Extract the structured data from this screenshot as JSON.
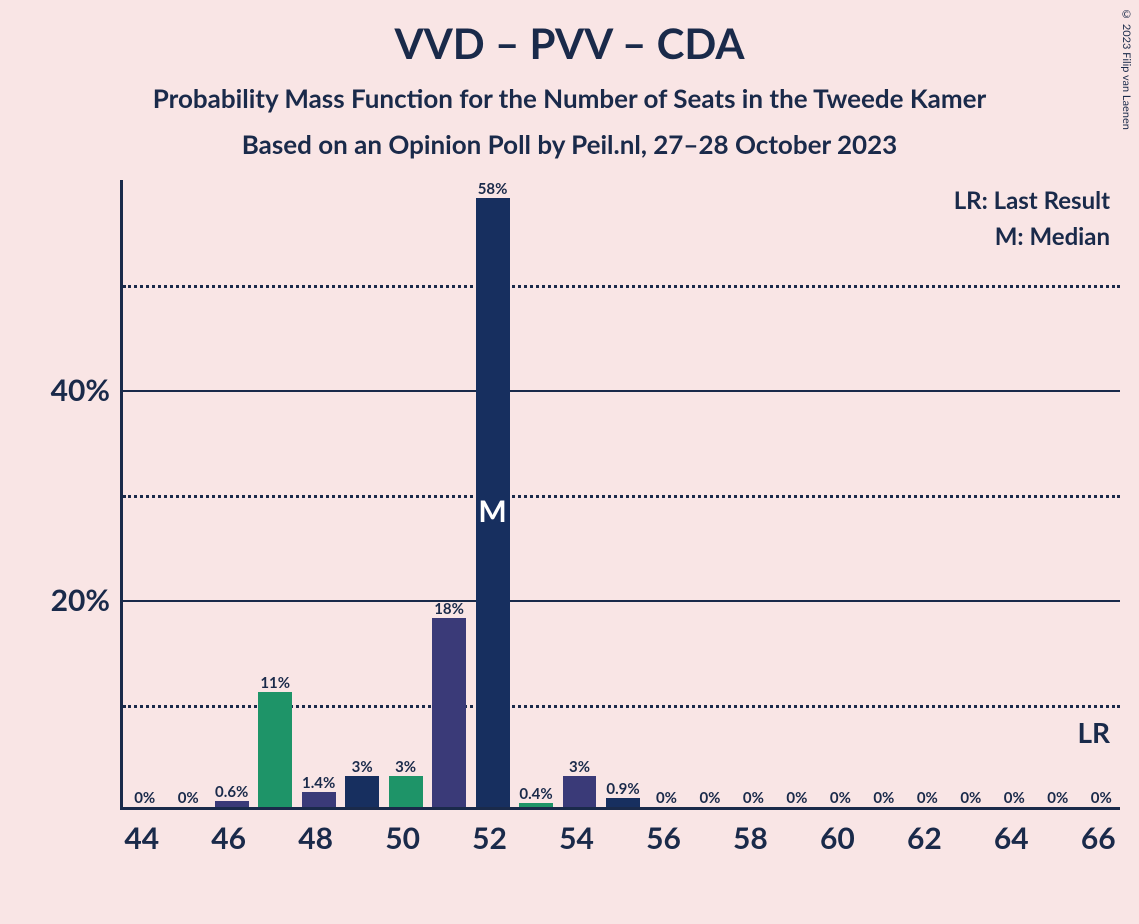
{
  "title": "VVD – PVV – CDA",
  "subtitle1": "Probability Mass Function for the Number of Seats in the Tweede Kamer",
  "subtitle2": "Based on an Opinion Poll by Peil.nl, 27–28 October 2023",
  "copyright": "© 2023 Filip van Laenen",
  "legend": {
    "lr": "LR: Last Result",
    "m": "M: Median",
    "lr_short": "LR",
    "m_short": "M"
  },
  "chart": {
    "type": "bar",
    "background_color": "#f9e5e5",
    "axis_color": "#1a2a4a",
    "text_color": "#1a2a4a",
    "ymax": 60,
    "ylim": [
      0,
      60
    ],
    "yticks_major": [
      20,
      40
    ],
    "yticks_minor": [
      10,
      30,
      50
    ],
    "ytick_labels": {
      "20": "20%",
      "40": "40%"
    },
    "xmin": 44,
    "xmax": 66,
    "xticks": [
      44,
      46,
      48,
      50,
      52,
      54,
      56,
      58,
      60,
      62,
      64,
      66
    ],
    "bar_width_ratio": 0.78,
    "colors": {
      "navy": "#172f5f",
      "purple": "#3a3a78",
      "green": "#1e9468"
    },
    "median_x": 52,
    "lr_x": 66,
    "bars": [
      {
        "x": 44,
        "value": 0,
        "label": "0%",
        "color": "navy"
      },
      {
        "x": 45,
        "value": 0,
        "label": "0%",
        "color": "navy"
      },
      {
        "x": 46,
        "value": 0.6,
        "label": "0.6%",
        "color": "purple"
      },
      {
        "x": 47,
        "value": 11,
        "label": "11%",
        "color": "green"
      },
      {
        "x": 48,
        "value": 1.4,
        "label": "1.4%",
        "color": "purple"
      },
      {
        "x": 49,
        "value": 3,
        "label": "3%",
        "color": "navy"
      },
      {
        "x": 50,
        "value": 3,
        "label": "3%",
        "color": "green"
      },
      {
        "x": 51,
        "value": 18,
        "label": "18%",
        "color": "purple"
      },
      {
        "x": 52,
        "value": 58,
        "label": "58%",
        "color": "navy"
      },
      {
        "x": 53,
        "value": 0.4,
        "label": "0.4%",
        "color": "green"
      },
      {
        "x": 54,
        "value": 3,
        "label": "3%",
        "color": "purple"
      },
      {
        "x": 55,
        "value": 0.9,
        "label": "0.9%",
        "color": "navy"
      },
      {
        "x": 56,
        "value": 0,
        "label": "0%",
        "color": "navy"
      },
      {
        "x": 57,
        "value": 0,
        "label": "0%",
        "color": "navy"
      },
      {
        "x": 58,
        "value": 0,
        "label": "0%",
        "color": "navy"
      },
      {
        "x": 59,
        "value": 0,
        "label": "0%",
        "color": "navy"
      },
      {
        "x": 60,
        "value": 0,
        "label": "0%",
        "color": "navy"
      },
      {
        "x": 61,
        "value": 0,
        "label": "0%",
        "color": "navy"
      },
      {
        "x": 62,
        "value": 0,
        "label": "0%",
        "color": "navy"
      },
      {
        "x": 63,
        "value": 0,
        "label": "0%",
        "color": "navy"
      },
      {
        "x": 64,
        "value": 0,
        "label": "0%",
        "color": "navy"
      },
      {
        "x": 65,
        "value": 0,
        "label": "0%",
        "color": "navy"
      },
      {
        "x": 66,
        "value": 0,
        "label": "0%",
        "color": "navy"
      }
    ]
  }
}
